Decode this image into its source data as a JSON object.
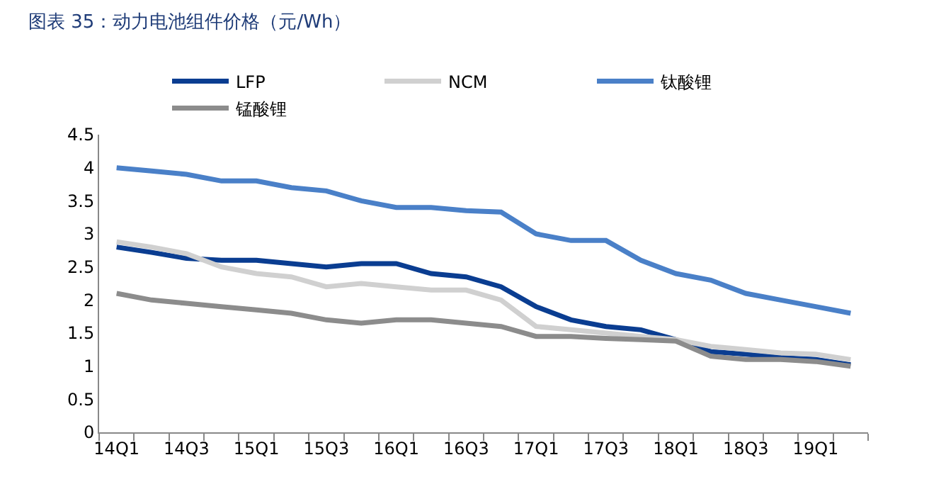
{
  "chart_data": {
    "type": "line",
    "title": "图表 35：动力电池组件价格（元/Wh）",
    "categories": [
      "14Q1",
      null,
      "14Q3",
      null,
      "15Q1",
      null,
      "15Q3",
      null,
      "16Q1",
      null,
      "16Q3",
      null,
      "17Q1",
      null,
      "17Q3",
      null,
      "18Q1",
      null,
      "18Q3",
      null,
      "19Q1",
      null
    ],
    "series": [
      {
        "name": "LFP",
        "color": "#0a3d91",
        "values": [
          2.8,
          2.72,
          2.63,
          2.6,
          2.6,
          2.55,
          2.5,
          2.55,
          2.55,
          2.4,
          2.35,
          2.2,
          1.9,
          1.7,
          1.6,
          1.55,
          1.4,
          1.22,
          1.18,
          1.13,
          1.1,
          1.02
        ]
      },
      {
        "name": "NCM",
        "color": "#d0d0d0",
        "values": [
          2.88,
          2.8,
          2.7,
          2.5,
          2.4,
          2.35,
          2.2,
          2.25,
          2.2,
          2.15,
          2.15,
          2.0,
          1.6,
          1.55,
          1.5,
          1.45,
          1.4,
          1.3,
          1.25,
          1.2,
          1.18,
          1.1
        ]
      },
      {
        "name": "钛酸锂",
        "color": "#4a80c8",
        "values": [
          4.0,
          3.95,
          3.9,
          3.8,
          3.8,
          3.7,
          3.65,
          3.5,
          3.4,
          3.4,
          3.35,
          3.33,
          3.0,
          2.9,
          2.9,
          2.6,
          2.4,
          2.3,
          2.1,
          2.0,
          1.9,
          1.8
        ]
      },
      {
        "name": "锰酸锂",
        "color": "#8c8c8c",
        "values": [
          2.1,
          2.0,
          1.95,
          1.9,
          1.85,
          1.8,
          1.7,
          1.65,
          1.7,
          1.7,
          1.65,
          1.6,
          1.45,
          1.45,
          1.42,
          1.4,
          1.38,
          1.15,
          1.1,
          1.1,
          1.07,
          1.0
        ]
      }
    ],
    "ylim": [
      0,
      4.5
    ],
    "yticks": [
      0,
      0.5,
      1,
      1.5,
      2,
      2.5,
      3,
      3.5,
      4,
      4.5
    ],
    "legend": "top",
    "marker": "none",
    "line_style": "solid"
  }
}
